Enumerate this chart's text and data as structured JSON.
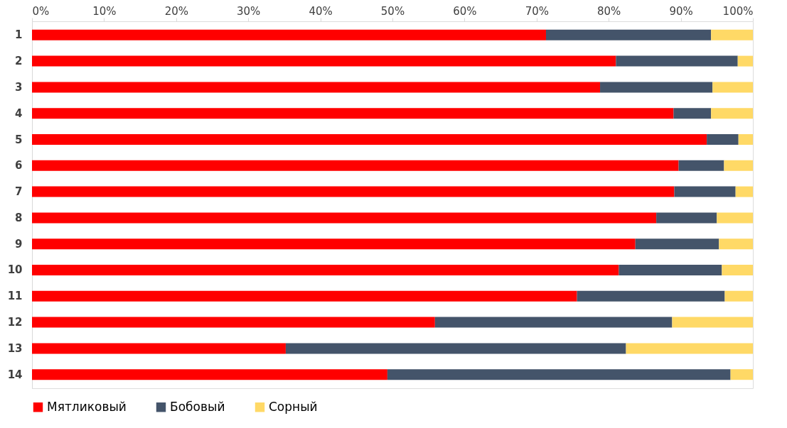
{
  "chart_data": {
    "type": "bar",
    "orientation": "horizontal",
    "stacked": true,
    "categories": [
      "1",
      "2",
      "3",
      "4",
      "5",
      "6",
      "7",
      "8",
      "9",
      "10",
      "11",
      "12",
      "13",
      "14"
    ],
    "series": [
      {
        "name": "Мятликовый",
        "color": "#ff0000",
        "values": [
          71.3,
          81.0,
          78.8,
          89.0,
          93.6,
          89.7,
          89.1,
          86.6,
          83.7,
          81.4,
          75.6,
          55.9,
          35.2,
          49.3
        ]
      },
      {
        "name": "Бобовый",
        "color": "#44546a",
        "values": [
          22.9,
          16.9,
          15.6,
          5.2,
          4.4,
          6.3,
          8.5,
          8.4,
          11.6,
          14.3,
          20.5,
          32.9,
          47.2,
          47.6
        ]
      },
      {
        "name": "Сорный",
        "color": "#ffd966",
        "values": [
          5.8,
          2.1,
          5.6,
          5.8,
          2.0,
          4.0,
          2.4,
          5.0,
          4.7,
          4.3,
          3.9,
          11.2,
          17.6,
          3.1
        ]
      }
    ],
    "xlim": [
      0,
      100
    ],
    "xticks": [
      {
        "value": 0,
        "label": "0%"
      },
      {
        "value": 10,
        "label": "10%"
      },
      {
        "value": 20,
        "label": "20%"
      },
      {
        "value": 30,
        "label": "30%"
      },
      {
        "value": 40,
        "label": "40%"
      },
      {
        "value": 50,
        "label": "50%"
      },
      {
        "value": 60,
        "label": "60%"
      },
      {
        "value": 70,
        "label": "70%"
      },
      {
        "value": 80,
        "label": "80%"
      },
      {
        "value": 90,
        "label": "90%"
      },
      {
        "value": 100,
        "label": "100%"
      }
    ],
    "grid": false,
    "legend": "bottom"
  }
}
